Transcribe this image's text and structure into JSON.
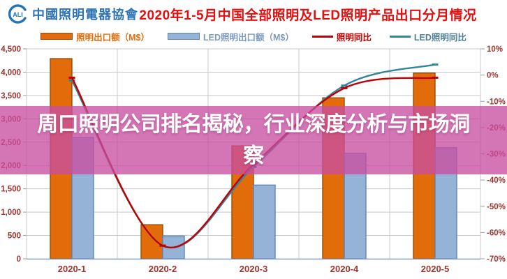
{
  "header": {
    "logo_mark": "CALI",
    "logo_text": "中國照明電器協會",
    "title": "2020年1-5月中国全部照明及LED照明产品出口分月情况",
    "title_color": "#E60F0F",
    "logo_color": "#2273BC"
  },
  "legend": [
    {
      "label": "照明出口额（M$）",
      "type": "bar",
      "fill": "#E36C0A",
      "border": "#9C4A06",
      "text_color": "#E26B0A"
    },
    {
      "label": "LED照明出口额（M$）",
      "type": "bar",
      "fill": "#95B3D7",
      "border": "#6084B8",
      "text_color": "#7E99BE"
    },
    {
      "label": "照明同比",
      "type": "line",
      "fill": "#C00000",
      "border": "#C00000",
      "text_color": "#C00000"
    },
    {
      "label": "LED照明同比",
      "type": "line",
      "fill": "#31859C",
      "border": "#31859C",
      "text_color": "#4E7F96"
    }
  ],
  "overlay": {
    "text": "周口照明公司排名揭秘，行业深度分析与市场洞察",
    "background": "rgba(200,78,160,0.78)"
  },
  "chart_data": {
    "type": "bar",
    "subtype": "bar+line combo, dual axis",
    "title": "2020年1-5月中国全部照明及LED照明产品出口分月情况",
    "categories": [
      "2020-1",
      "2020-2",
      "2020-3",
      "2020-4",
      "2020-5"
    ],
    "series": [
      {
        "name": "照明出口额（M$）",
        "type": "bar",
        "axis": "left",
        "color": "#E36C0A",
        "border": "#9C4A06",
        "values": [
          4290,
          730,
          2420,
          3450,
          3980
        ]
      },
      {
        "name": "LED照明出口额（M$）",
        "type": "bar",
        "axis": "left",
        "color": "#95B3D7",
        "border": "#6084B8",
        "values": [
          2600,
          490,
          1580,
          2260,
          2380
        ]
      },
      {
        "name": "照明同比",
        "type": "line",
        "axis": "right",
        "color": "#C00000",
        "values": [
          -1,
          -65,
          -34,
          -5,
          -1
        ]
      },
      {
        "name": "LED照明同比",
        "type": "line",
        "axis": "right",
        "color": "#31859C",
        "values": [
          -2,
          -65,
          -35,
          -4,
          4
        ]
      }
    ],
    "left_axis": {
      "min": 0,
      "max": 4500,
      "step": 500,
      "tick_labels": [
        "0",
        "500",
        "1,000",
        "1,500",
        "2,000",
        "2,500",
        "3,000",
        "3,500",
        "4,000",
        "4,500"
      ]
    },
    "right_axis": {
      "min": -70,
      "max": 10,
      "step": 10,
      "unit": "%",
      "tick_labels": [
        "-70%",
        "-60%",
        "-50%",
        "-40%",
        "-30%",
        "-20%",
        "-10%",
        "0%",
        "10%"
      ]
    },
    "grid": true,
    "legend_position": "top",
    "axis_label_color": "#A0342F",
    "grid_color": "#C8C8C8"
  }
}
